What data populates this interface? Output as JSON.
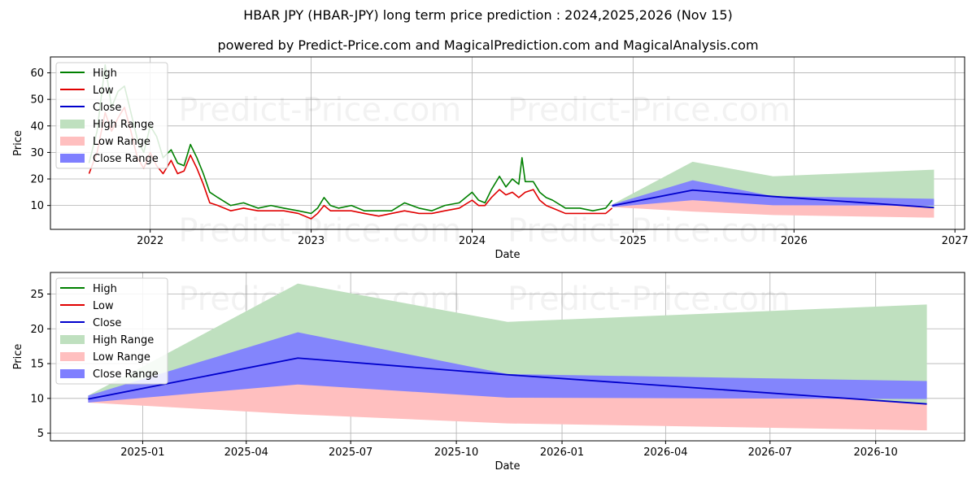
{
  "title": "HBAR JPY (HBAR-JPY) long term price prediction : 2024,2025,2026 (Nov 15)",
  "subtitle": "powered by Predict-Price.com and MagicalPrediction.com and MagicalAnalysis.com",
  "watermark": "Predict-Price.com",
  "colors": {
    "high": "#008000",
    "low": "#e00000",
    "close": "#0000cc",
    "high_range": "#bfe0bf",
    "low_range": "#ffbfbf",
    "close_range": "#7f7fff",
    "grid": "#b0b0b0"
  },
  "legend": [
    "High",
    "Low",
    "Close",
    "High Range",
    "Low Range",
    "Close Range"
  ],
  "chart_data": [
    {
      "type": "line",
      "name": "history-and-forecast",
      "xlabel": "Date",
      "ylabel": "Price",
      "xlim": [
        2021.38,
        2027.06
      ],
      "ylim": [
        1,
        66
      ],
      "grid": true,
      "legend_position": "top-left",
      "x_ticks": [
        2022,
        2023,
        2024,
        2025,
        2026,
        2027
      ],
      "x_tick_labels": [
        "2022",
        "2023",
        "2024",
        "2025",
        "2026",
        "2027"
      ],
      "y_ticks": [
        10,
        20,
        30,
        40,
        50,
        60
      ],
      "history_x": [
        2021.62,
        2021.67,
        2021.72,
        2021.76,
        2021.8,
        2021.84,
        2021.88,
        2021.92,
        2021.96,
        2022.0,
        2022.04,
        2022.08,
        2022.13,
        2022.17,
        2022.21,
        2022.25,
        2022.29,
        2022.33,
        2022.37,
        2022.42,
        2022.5,
        2022.58,
        2022.67,
        2022.75,
        2022.83,
        2022.92,
        2023.0,
        2023.04,
        2023.08,
        2023.12,
        2023.17,
        2023.25,
        2023.33,
        2023.42,
        2023.5,
        2023.58,
        2023.67,
        2023.75,
        2023.83,
        2023.92,
        2024.0,
        2024.04,
        2024.08,
        2024.12,
        2024.17,
        2024.21,
        2024.25,
        2024.29,
        2024.31,
        2024.33,
        2024.38,
        2024.42,
        2024.46,
        2024.5,
        2024.58,
        2024.67,
        2024.75,
        2024.83,
        2024.87
      ],
      "history_high": [
        26,
        38,
        63,
        47,
        53,
        55,
        45,
        35,
        30,
        40,
        36,
        28,
        31,
        26,
        25,
        33,
        28,
        22,
        15,
        13,
        10,
        11,
        9,
        10,
        9,
        8,
        7,
        9,
        13,
        10,
        9,
        10,
        8,
        8,
        8,
        11,
        9,
        8,
        10,
        11,
        15,
        12,
        11,
        16,
        21,
        17,
        20,
        18,
        28,
        19,
        19,
        15,
        13,
        12,
        9,
        9,
        8,
        9,
        12
      ],
      "history_low": [
        22,
        30,
        45,
        38,
        43,
        47,
        38,
        28,
        24,
        30,
        25,
        22,
        27,
        22,
        23,
        29,
        24,
        18,
        11,
        10,
        8,
        9,
        8,
        8,
        8,
        7,
        5,
        7,
        10,
        8,
        8,
        8,
        7,
        6,
        7,
        8,
        7,
        7,
        8,
        9,
        12,
        10,
        10,
        13,
        16,
        14,
        15,
        13,
        14,
        15,
        16,
        12,
        10,
        9,
        7,
        7,
        7,
        7,
        9
      ],
      "forecast_x": [
        2024.87,
        2025.37,
        2025.87,
        2026.87
      ],
      "close": [
        9.9,
        15.8,
        13.4,
        9.2
      ],
      "high_range": [
        10.4,
        26.5,
        21.0,
        23.5
      ],
      "low_range": [
        9.4,
        7.7,
        6.4,
        5.4
      ],
      "close_range_upper": [
        10.4,
        19.5,
        13.5,
        12.5
      ],
      "close_range_lower": [
        9.4,
        12.0,
        10.1,
        9.9
      ]
    },
    {
      "type": "area",
      "name": "forecast-zoom",
      "xlabel": "Date",
      "ylabel": "Price",
      "xlim": [
        2024.78,
        2026.96
      ],
      "ylim": [
        3.9,
        28.1
      ],
      "grid": true,
      "legend_position": "top-left",
      "x_ticks": [
        2025.0,
        2025.247,
        2025.496,
        2025.748,
        2026.0,
        2026.247,
        2026.496,
        2026.748
      ],
      "x_tick_labels": [
        "2025-01",
        "2025-04",
        "2025-07",
        "2025-10",
        "2026-01",
        "2026-04",
        "2026-07",
        "2026-10"
      ],
      "y_ticks": [
        5,
        10,
        15,
        20,
        25
      ],
      "forecast_x": [
        2024.87,
        2025.37,
        2025.87,
        2026.87
      ],
      "close": [
        9.9,
        15.8,
        13.4,
        9.2
      ],
      "high_range": [
        10.4,
        26.5,
        21.0,
        23.5
      ],
      "low_range": [
        9.4,
        7.7,
        6.4,
        5.4
      ],
      "close_range_upper": [
        10.4,
        19.5,
        13.5,
        12.5
      ],
      "close_range_lower": [
        9.4,
        12.0,
        10.1,
        9.9
      ]
    }
  ]
}
